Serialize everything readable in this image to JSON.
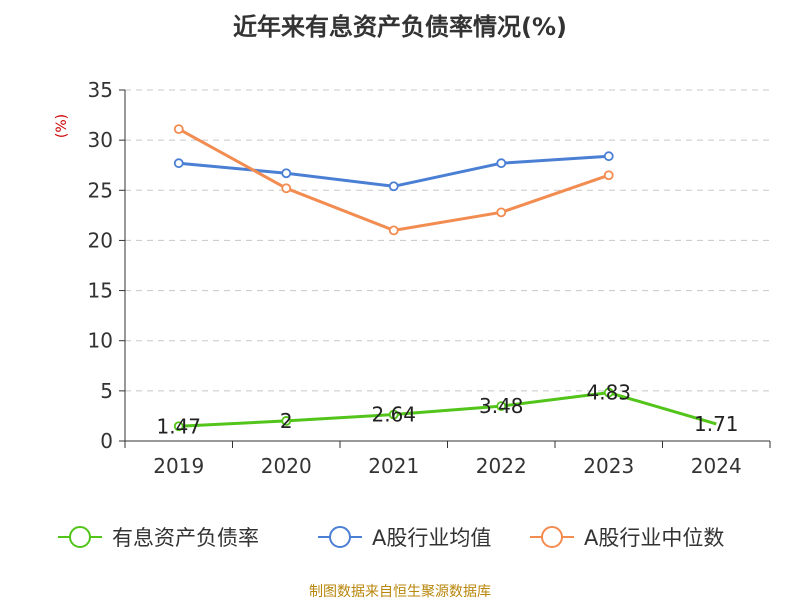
{
  "chart_data": {
    "type": "line",
    "title": "近年来有息资产负债率情况(%)",
    "ylabel": "(%)",
    "xlabel": "",
    "categories": [
      "2019",
      "2020",
      "2021",
      "2022",
      "2023",
      "2024"
    ],
    "ylim": [
      0,
      35
    ],
    "yticks": [
      0,
      5,
      10,
      15,
      20,
      25,
      30,
      35
    ],
    "grid": "horizontal-dashed",
    "legend_position": "bottom",
    "series": [
      {
        "name": "有息资产负债率",
        "color": "#52c41a",
        "values": [
          1.47,
          2,
          2.64,
          3.48,
          4.83,
          1.71
        ],
        "labels": [
          "1.47",
          "2",
          "2.64",
          "3.48",
          "4.83",
          "1.71"
        ]
      },
      {
        "name": "A股行业均值",
        "color": "#4a7fd4",
        "values": [
          27.7,
          26.7,
          25.4,
          27.7,
          28.4,
          null
        ]
      },
      {
        "name": "A股行业中位数",
        "color": "#f28c50",
        "values": [
          31.1,
          25.2,
          21.0,
          22.8,
          26.5,
          null
        ]
      }
    ],
    "source": "制图数据来自恒生聚源数据库"
  }
}
